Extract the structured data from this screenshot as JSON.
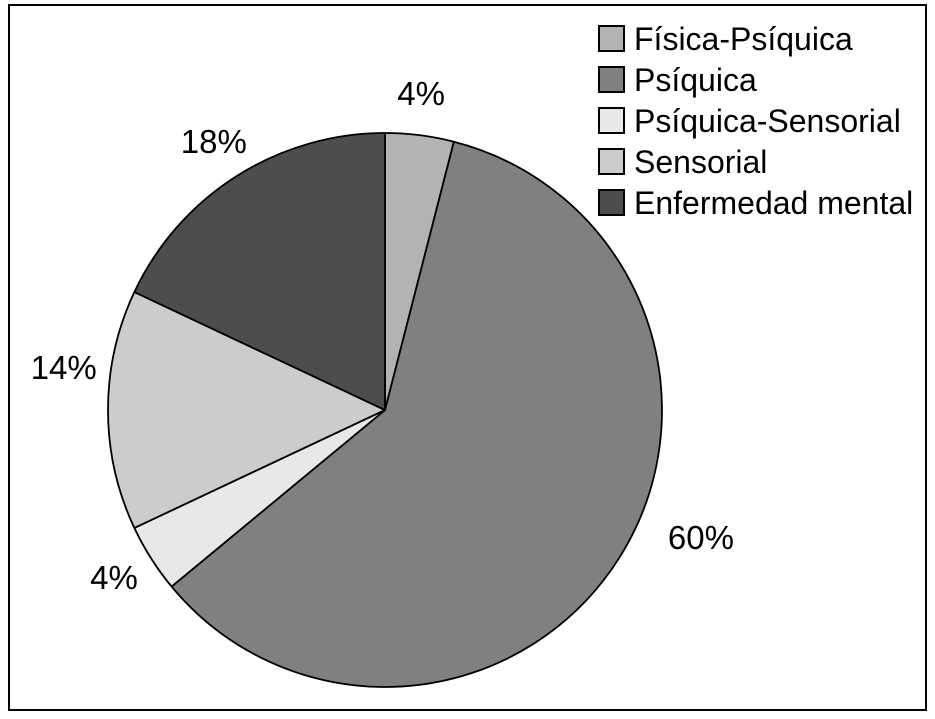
{
  "chart_data": {
    "type": "pie",
    "title": "",
    "slices": [
      {
        "label": "Física-Psíquica",
        "value": 4,
        "display": "4%",
        "color": "#b3b3b3"
      },
      {
        "label": "Psíquica",
        "value": 60,
        "display": "60%",
        "color": "#808080"
      },
      {
        "label": "Psíquica-Sensorial",
        "value": 4,
        "display": "4%",
        "color": "#e8e8e8"
      },
      {
        "label": "Sensorial",
        "value": 14,
        "display": "14%",
        "color": "#cccccc"
      },
      {
        "label": "Enfermedad mental",
        "value": 18,
        "display": "18%",
        "color": "#4d4d4d"
      }
    ],
    "legend_entries": [
      "Física-Psíquica",
      "Psíquica",
      "Psíquica-Sensorial",
      "Sensorial",
      "Enfermedad mental"
    ],
    "layout": {
      "start_angle_deg": 0,
      "direction": "clockwise",
      "legend_position": "top-right",
      "grid": false,
      "label_angles_deg": [
        6.5,
        112,
        238.3,
        277.5,
        327.5
      ],
      "label_radius_factors": [
        1.15,
        1.23,
        1.15,
        1.17,
        1.15
      ],
      "outline_color": "#000000",
      "background": "#ffffff"
    }
  }
}
